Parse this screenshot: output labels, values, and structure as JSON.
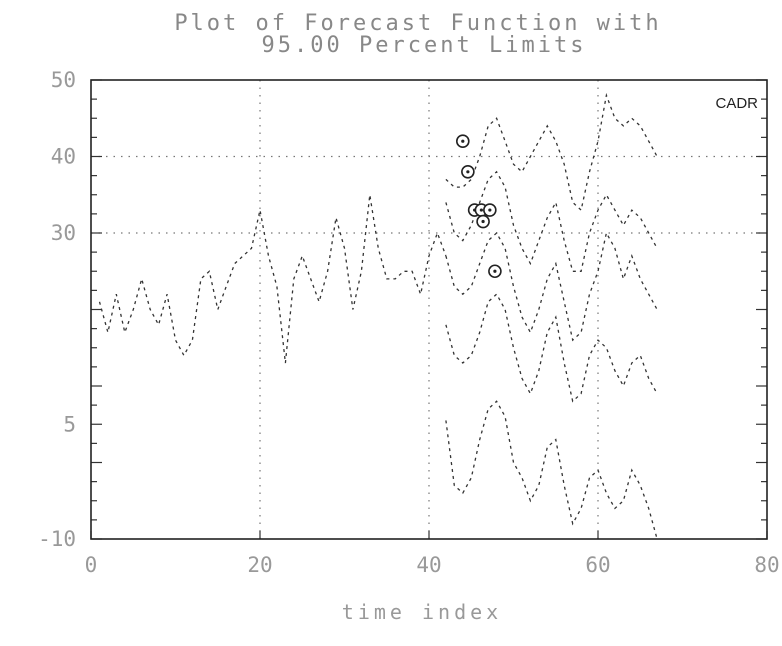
{
  "chart_data": {
    "type": "line",
    "title_line1": "Plot of Forecast Function with",
    "title_line2": "95.00 Percent Limits",
    "xlabel": "time index",
    "ylabel": "",
    "xlim": [
      0,
      80
    ],
    "ylim": [
      -10,
      50
    ],
    "x_ticks": [
      0,
      20,
      40,
      60,
      80
    ],
    "x_tick_labels": [
      "0",
      "20",
      "40",
      "60",
      "80"
    ],
    "y_ticks": [
      -10,
      5,
      30,
      40,
      50
    ],
    "y_tick_labels": [
      "-10",
      "5",
      "30",
      "40",
      "50"
    ],
    "legend_label": "CADR",
    "grid": true,
    "observed": {
      "x": [
        1,
        2,
        3,
        4,
        5,
        6,
        7,
        8,
        9,
        10,
        11,
        12,
        13,
        14,
        15,
        16,
        17,
        18,
        19,
        20,
        21,
        22,
        23,
        24,
        25,
        26,
        27,
        28,
        29,
        30,
        31,
        32,
        33,
        34,
        35,
        36,
        37,
        38,
        39,
        40,
        41,
        42
      ],
      "y": [
        21,
        17,
        22,
        17,
        20,
        24,
        20,
        18,
        22,
        16,
        14,
        16,
        24,
        25,
        20,
        23,
        26,
        27,
        28,
        33,
        27,
        23,
        13,
        24,
        27,
        24,
        21,
        25,
        32,
        28,
        20,
        25,
        35,
        28,
        24,
        24,
        25,
        25,
        22,
        27,
        30,
        27
      ]
    },
    "series": [
      {
        "x": [
          42,
          43,
          44,
          45,
          46,
          47,
          48,
          49,
          50,
          51,
          52,
          53,
          54,
          55,
          56,
          57,
          58,
          59,
          60,
          61,
          62,
          63,
          64,
          65,
          66,
          67
        ],
        "y": [
          5.5,
          -3,
          -4,
          -2,
          3,
          7,
          8,
          6,
          0,
          -2,
          -5,
          -3,
          2,
          3,
          -3,
          -8,
          -6,
          -2,
          -1,
          -4,
          -6,
          -5,
          -1,
          -3,
          -6,
          -10
        ]
      },
      {
        "x": [
          42,
          43,
          44,
          45,
          46,
          47,
          48,
          49,
          50,
          51,
          52,
          53,
          54,
          55,
          56,
          57,
          58,
          59,
          60,
          61,
          62,
          63,
          64,
          65,
          66,
          67
        ],
        "y": [
          18,
          14,
          13,
          14,
          17,
          21,
          22,
          20,
          15,
          11,
          9,
          12,
          17,
          19,
          13,
          8,
          9,
          14,
          16,
          15,
          12,
          10,
          13,
          14,
          11,
          9
        ]
      },
      {
        "x": [
          42,
          43,
          44,
          45,
          46,
          47,
          48,
          49,
          50,
          51,
          52,
          53,
          54,
          55,
          56,
          57,
          58,
          59,
          60,
          61,
          62,
          63,
          64,
          65,
          66,
          67
        ],
        "y": [
          27,
          23,
          22,
          23,
          26,
          29,
          30,
          28,
          23,
          19,
          17,
          20,
          24,
          26,
          21,
          16,
          17,
          22,
          25,
          30,
          28,
          24,
          27,
          24,
          22,
          20
        ]
      },
      {
        "x": [
          42,
          43,
          44,
          45,
          46,
          47,
          48,
          49,
          50,
          51,
          52,
          53,
          54,
          55,
          56,
          57,
          58,
          59,
          60,
          61,
          62,
          63,
          64,
          65,
          66,
          67
        ],
        "y": [
          34,
          30,
          29,
          31,
          34,
          37,
          38,
          36,
          31,
          28,
          26,
          29,
          32,
          34,
          29,
          25,
          25,
          30,
          33,
          35,
          33,
          31,
          33,
          32,
          30,
          28
        ]
      },
      {
        "x": [
          42,
          43,
          44,
          45,
          46,
          47,
          48,
          49,
          50,
          51,
          52,
          53,
          54,
          55,
          56,
          57,
          58,
          59,
          60,
          61,
          62,
          63,
          64,
          65,
          66,
          67
        ],
        "y": [
          37,
          36,
          36,
          37,
          40,
          44,
          45,
          42,
          39,
          38,
          40,
          42,
          44,
          42,
          39,
          34,
          33,
          38,
          42,
          48,
          45,
          44,
          45,
          44,
          42,
          40
        ]
      }
    ],
    "markers": {
      "x": [
        44,
        44.6,
        45.4,
        46.2,
        46.4,
        47.2,
        47.8
      ],
      "y": [
        42,
        38,
        33,
        33,
        31.5,
        33,
        25
      ]
    }
  }
}
